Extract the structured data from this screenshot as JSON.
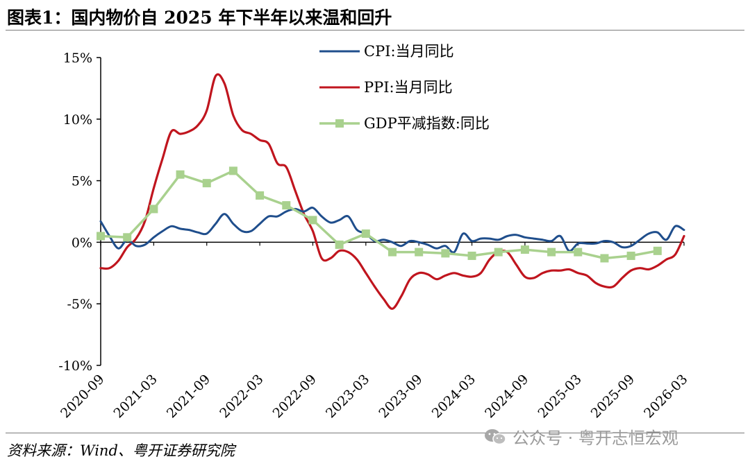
{
  "title": "图表1：国内物价自 2025 年下半年以来温和回升",
  "source": "资料来源：Wind、粤开证券研究院",
  "watermark": "公众号 · 粤开志恒宏观",
  "colors": {
    "cpi": "#1f4e8c",
    "ppi": "#c0151e",
    "gdp": "#a9d18e",
    "axis": "#000000"
  },
  "chart_data": {
    "type": "line",
    "ylim": [
      -10,
      15
    ],
    "yticks": [
      15,
      10,
      5,
      0,
      -5,
      -10
    ],
    "ytick_labels": [
      "15%",
      "10%",
      "5%",
      "0%",
      "-5%",
      "-10%"
    ],
    "xlim": [
      "2020-09",
      "2026-03"
    ],
    "xtick_labels": [
      "2020-09",
      "2021-03",
      "2021-09",
      "2022-03",
      "2022-09",
      "2023-03",
      "2023-09",
      "2024-03",
      "2024-09",
      "2025-03",
      "2025-09",
      "2026-03"
    ],
    "series": [
      {
        "name": "CPI:当月同比",
        "key": "cpi",
        "x": [
          "2020-09",
          "2020-10",
          "2020-11",
          "2020-12",
          "2021-01",
          "2021-02",
          "2021-03",
          "2021-04",
          "2021-05",
          "2021-06",
          "2021-07",
          "2021-08",
          "2021-09",
          "2021-10",
          "2021-11",
          "2021-12",
          "2022-01",
          "2022-02",
          "2022-03",
          "2022-04",
          "2022-05",
          "2022-06",
          "2022-07",
          "2022-08",
          "2022-09",
          "2022-10",
          "2022-11",
          "2022-12",
          "2023-01",
          "2023-02",
          "2023-03",
          "2023-04",
          "2023-05",
          "2023-06",
          "2023-07",
          "2023-08",
          "2023-09",
          "2023-10",
          "2023-11",
          "2023-12",
          "2024-01",
          "2024-02",
          "2024-03",
          "2024-04",
          "2024-05",
          "2024-06",
          "2024-07",
          "2024-08",
          "2024-09",
          "2024-10",
          "2024-11",
          "2024-12",
          "2025-01",
          "2025-02",
          "2025-03",
          "2025-04",
          "2025-05",
          "2025-06",
          "2025-07",
          "2025-08",
          "2025-09",
          "2025-10",
          "2025-11",
          "2025-12",
          "2026-01",
          "2026-02",
          "2026-03"
        ],
        "values": [
          1.7,
          0.5,
          -0.5,
          0.2,
          -0.3,
          -0.2,
          0.4,
          0.9,
          1.3,
          1.1,
          1.0,
          0.8,
          0.7,
          1.5,
          2.3,
          1.5,
          0.9,
          0.9,
          1.5,
          2.1,
          2.1,
          2.5,
          2.7,
          2.5,
          2.8,
          2.1,
          1.6,
          1.8,
          2.1,
          1.0,
          0.7,
          0.1,
          0.2,
          0.0,
          -0.3,
          0.1,
          0.0,
          -0.2,
          -0.5,
          -0.3,
          -0.8,
          0.7,
          0.1,
          0.3,
          0.3,
          0.2,
          0.5,
          0.6,
          0.4,
          0.3,
          0.2,
          0.1,
          0.5,
          -0.7,
          -0.1,
          -0.1,
          -0.1,
          0.1,
          0.0,
          -0.4,
          -0.3,
          0.2,
          0.7,
          0.8,
          0.2,
          1.3,
          1.0
        ]
      },
      {
        "name": "PPI:当月同比",
        "key": "ppi",
        "x": [
          "2020-09",
          "2020-10",
          "2020-11",
          "2020-12",
          "2021-01",
          "2021-02",
          "2021-03",
          "2021-04",
          "2021-05",
          "2021-06",
          "2021-07",
          "2021-08",
          "2021-09",
          "2021-10",
          "2021-11",
          "2021-12",
          "2022-01",
          "2022-02",
          "2022-03",
          "2022-04",
          "2022-05",
          "2022-06",
          "2022-07",
          "2022-08",
          "2022-09",
          "2022-10",
          "2022-11",
          "2022-12",
          "2023-01",
          "2023-02",
          "2023-03",
          "2023-04",
          "2023-05",
          "2023-06",
          "2023-07",
          "2023-08",
          "2023-09",
          "2023-10",
          "2023-11",
          "2023-12",
          "2024-01",
          "2024-02",
          "2024-03",
          "2024-04",
          "2024-05",
          "2024-06",
          "2024-07",
          "2024-08",
          "2024-09",
          "2024-10",
          "2024-11",
          "2024-12",
          "2025-01",
          "2025-02",
          "2025-03",
          "2025-04",
          "2025-05",
          "2025-06",
          "2025-07",
          "2025-08",
          "2025-09",
          "2025-10",
          "2025-11",
          "2025-12",
          "2026-01",
          "2026-02",
          "2026-03"
        ],
        "values": [
          -2.1,
          -2.1,
          -1.5,
          -0.4,
          0.3,
          1.7,
          4.4,
          6.8,
          9.0,
          8.8,
          9.0,
          9.5,
          10.7,
          13.5,
          12.9,
          10.3,
          9.1,
          8.8,
          8.3,
          8.0,
          6.4,
          6.1,
          4.2,
          2.3,
          0.9,
          -1.3,
          -1.3,
          -0.7,
          -0.8,
          -1.4,
          -2.5,
          -3.6,
          -4.6,
          -5.4,
          -4.4,
          -3.0,
          -2.5,
          -2.6,
          -3.0,
          -2.7,
          -2.5,
          -2.7,
          -2.8,
          -2.5,
          -1.4,
          -0.8,
          -0.8,
          -1.8,
          -2.8,
          -2.9,
          -2.5,
          -2.3,
          -2.3,
          -2.2,
          -2.5,
          -2.7,
          -3.3,
          -3.6,
          -3.6,
          -2.9,
          -2.3,
          -2.1,
          -2.2,
          -1.9,
          -1.4,
          -1.0,
          0.5
        ]
      },
      {
        "name": "GDP平减指数:同比",
        "key": "gdp",
        "x": [
          "2020-09",
          "2020-12",
          "2021-03",
          "2021-06",
          "2021-09",
          "2021-12",
          "2022-03",
          "2022-06",
          "2022-09",
          "2022-12",
          "2023-03",
          "2023-06",
          "2023-09",
          "2023-12",
          "2024-03",
          "2024-06",
          "2024-09",
          "2024-12",
          "2025-03",
          "2025-06",
          "2025-09",
          "2025-12"
        ],
        "values": [
          0.5,
          0.4,
          2.7,
          5.5,
          4.8,
          5.8,
          3.8,
          3.0,
          1.8,
          -0.2,
          0.7,
          -0.8,
          -0.8,
          -0.9,
          -1.1,
          -0.8,
          -0.6,
          -0.8,
          -0.8,
          -1.3,
          -1.1,
          -0.7
        ]
      }
    ]
  }
}
